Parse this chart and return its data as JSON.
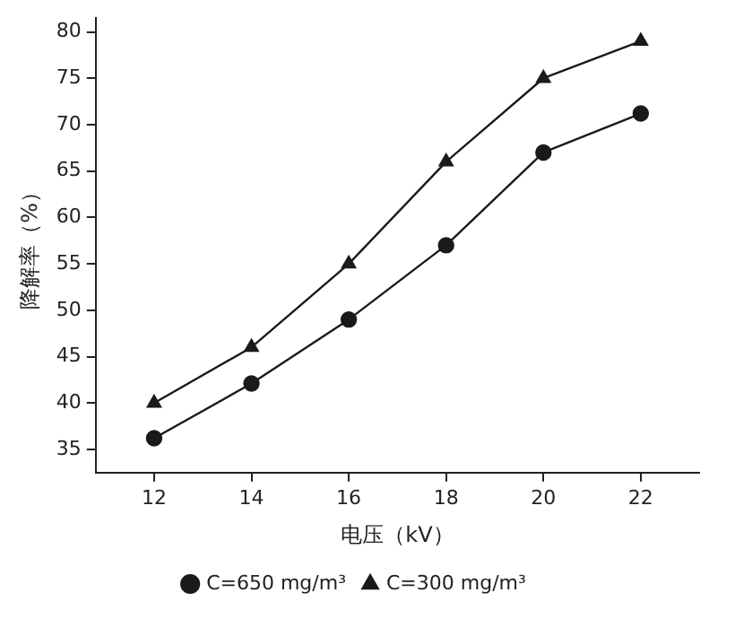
{
  "chart_data": {
    "type": "line",
    "xlabel": "电压（kV）",
    "ylabel": "降解率（%）",
    "x": [
      12,
      14,
      16,
      18,
      20,
      22
    ],
    "series": [
      {
        "name": "C=650 mg/m³",
        "color": "#1a1a1a",
        "marker": "circle",
        "values": [
          36.2,
          42.1,
          49,
          57,
          67,
          71.2
        ]
      },
      {
        "name": "C=300 mg/m³",
        "color": "#1a1a1a",
        "marker": "triangle",
        "values": [
          40,
          46,
          55,
          66,
          75,
          79
        ]
      }
    ],
    "xlim": [
      10.8,
      23.2
    ],
    "xticks": [
      12,
      14,
      16,
      18,
      20,
      22
    ],
    "ylim": [
      32.5,
      81.5
    ],
    "yticks": [
      35,
      40,
      45,
      50,
      55,
      60,
      65,
      70,
      75,
      80
    ],
    "grid": false,
    "legend": "bottom",
    "line_style": "solid"
  }
}
